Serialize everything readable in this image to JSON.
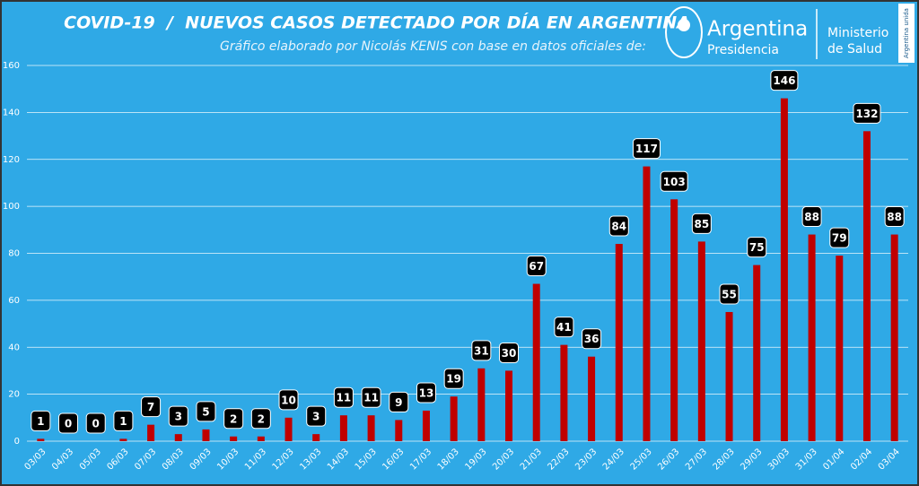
{
  "chart_data": {
    "type": "bar",
    "title": "COVID-19  /  NUEVOS CASOS DETECTADO POR DÍA EN ARGENTINA",
    "subtitle": "Gráfico elaborado por Nicolás KENIS con base en datos oficiales de:",
    "logo": {
      "name": "Argentina",
      "sub": "Presidencia"
    },
    "ministry": [
      "Ministerio",
      "de Salud"
    ],
    "badge": "Argentina unida",
    "categories": [
      "03/03",
      "04/03",
      "05/03",
      "06/03",
      "07/03",
      "08/03",
      "09/03",
      "10/03",
      "11/03",
      "12/03",
      "13/03",
      "14/03",
      "15/03",
      "16/03",
      "17/03",
      "18/03",
      "19/03",
      "20/03",
      "21/03",
      "22/03",
      "23/03",
      "24/03",
      "25/03",
      "26/03",
      "27/03",
      "28/03",
      "29/03",
      "30/03",
      "31/03",
      "01/04",
      "02/04",
      "03/04"
    ],
    "values": [
      1,
      0,
      0,
      1,
      7,
      3,
      5,
      2,
      2,
      10,
      3,
      11,
      11,
      9,
      13,
      19,
      31,
      30,
      67,
      41,
      36,
      84,
      117,
      103,
      85,
      55,
      75,
      146,
      88,
      79,
      132,
      88
    ],
    "color": "#c00000",
    "ylim": [
      0,
      160
    ],
    "yticks": [
      0,
      20,
      40,
      60,
      80,
      100,
      120,
      140,
      160
    ],
    "grid": true
  }
}
